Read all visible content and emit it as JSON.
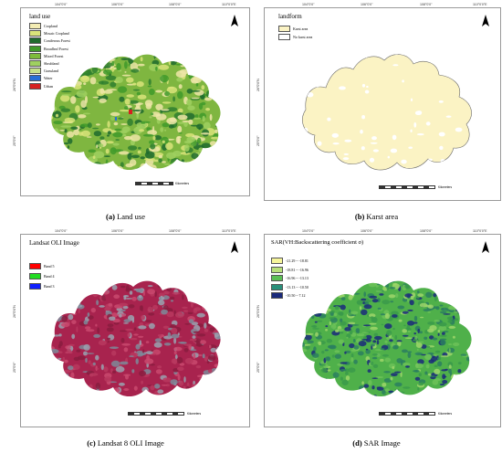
{
  "panels": [
    {
      "id": "a",
      "legend_title": "land use",
      "legend": [
        {
          "label": "Cropland",
          "color": "#f3ecb3"
        },
        {
          "label": "Mosaic Cropland",
          "color": "#d9e47a"
        },
        {
          "label": "Coniferous Forest",
          "color": "#1f6b2e"
        },
        {
          "label": "Broadleaf Forest",
          "color": "#3f9a2a"
        },
        {
          "label": "Mixed Forest",
          "color": "#7dbb3a"
        },
        {
          "label": "Shrubland",
          "color": "#9fd060"
        },
        {
          "label": "Grassland",
          "color": "#c6e08a"
        },
        {
          "label": "Water",
          "color": "#2a6fd6"
        },
        {
          "label": "Urban",
          "color": "#d62020"
        }
      ],
      "top_ticks": [
        "104°0'0\"",
        "106°0'0\"",
        "108°0'0\"",
        "110°0'0\"E"
      ],
      "left_ticks": [
        "26°0'0\"N",
        "25°0'0\""
      ],
      "scale_label": "Kilometers",
      "scale_ticks": [
        "0",
        "20",
        "40",
        "80",
        "120",
        "160"
      ],
      "caption_letter": "(a)",
      "caption_text": " Land use"
    },
    {
      "id": "b",
      "legend_title": "landform",
      "legend": [
        {
          "label": "Karst area",
          "color": "#fbf3c4"
        },
        {
          "label": "No karst area",
          "color": "#ffffff"
        }
      ],
      "top_ticks": [
        "104°0'0\"",
        "106°0'0\"",
        "108°0'0\"",
        "110°0'0\"E"
      ],
      "left_ticks": [
        "26°0'0\"N",
        "25°0'0\""
      ],
      "scale_label": "Kilometers",
      "scale_ticks": [
        "0",
        "25",
        "50",
        "100",
        "150",
        "200"
      ],
      "caption_letter": "(b)",
      "caption_text": " Karst area"
    },
    {
      "id": "c",
      "legend_title": "Landsat OLI Image",
      "legend": [
        {
          "label": "Band 5",
          "color": "#ff0000"
        },
        {
          "label": "Band 4",
          "color": "#22dd22"
        },
        {
          "label": "Band 3",
          "color": "#1020ff"
        }
      ],
      "top_ticks": [
        "104°0'0\"",
        "106°0'0\"",
        "108°0'0\"",
        "110°0'0\"E"
      ],
      "left_ticks": [
        "26°0'0\"N",
        "25°0'0\""
      ],
      "scale_label": "Kilometers",
      "scale_ticks": [
        "0",
        "25",
        "50",
        "100",
        "150",
        "200"
      ],
      "caption_letter": "(c)",
      "caption_text": " Landsat 8 OLI Image"
    },
    {
      "id": "d",
      "legend_title": "SAR(VH:Backscattering coefficient σ)",
      "legend": [
        {
          "label": "-21.29 ~ -18.81",
          "color": "#f6f59a"
        },
        {
          "label": "-18.81 ~ -16.96",
          "color": "#b8e07a"
        },
        {
          "label": "-16.96 ~ -13.13",
          "color": "#5cbf55"
        },
        {
          "label": "-13.13 ~ -10.50",
          "color": "#2a8f7a"
        },
        {
          "label": "-10.50 ~ 7.12",
          "color": "#1a2a7a"
        }
      ],
      "top_ticks": [
        "104°0'0\"",
        "106°0'0\"",
        "108°0'0\"",
        "110°0'0\"E"
      ],
      "left_ticks": [
        "26°0'0\"N",
        "25°0'0\""
      ],
      "scale_label": "Kilometers",
      "scale_ticks": [
        "0",
        "25",
        "50",
        "100",
        "150",
        "200"
      ],
      "caption_letter": "(d)",
      "caption_text": " SAR Image"
    }
  ],
  "north_label": "N",
  "colors": {
    "landuse_base": "#7fb640",
    "landuse_forest": "#2f7f2f",
    "landuse_crop": "#efe6a8",
    "karst_fill": "#fbf3c4",
    "karst_edge": "#6a6a6a",
    "landsat_base": "#a8234e",
    "landsat_bright": "#c9496f",
    "landsat_gray": "#9aa2b0",
    "sar_base": "#4fb04a",
    "sar_dark": "#2a7f5f",
    "sar_light": "#9ed66a"
  }
}
